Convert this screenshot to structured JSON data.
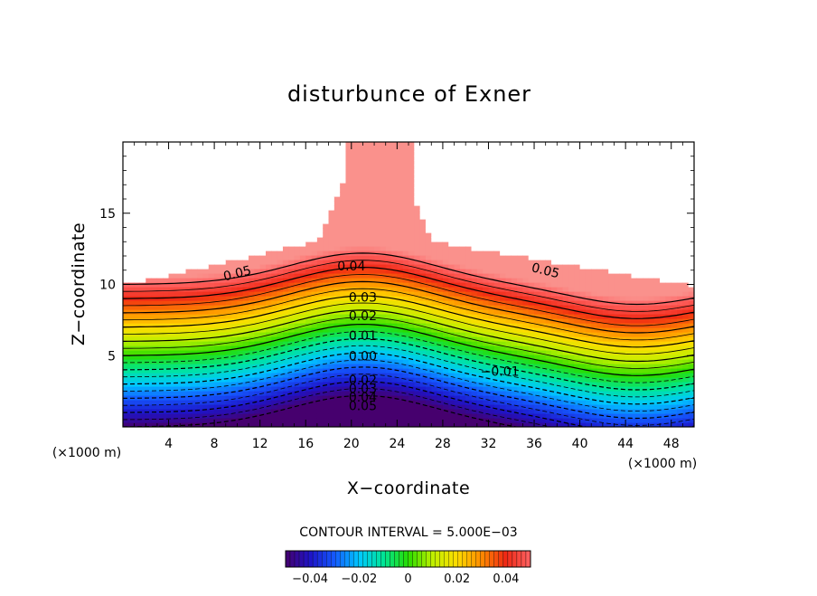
{
  "chart_data": {
    "type": "contour",
    "title": "disturbunce of Exner",
    "xlabel": "X−coordinate",
    "ylabel": "Z−coordinate",
    "x_unit_left": "(×1000 m)",
    "x_unit_right": "(×1000 m)",
    "xlim": [
      0,
      50
    ],
    "ylim": [
      0,
      20
    ],
    "x_ticks": [
      4,
      8,
      12,
      16,
      20,
      24,
      28,
      32,
      36,
      40,
      44,
      48
    ],
    "y_ticks": [
      5,
      10,
      15
    ],
    "contour_interval_text": "CONTOUR INTERVAL = 5.000E−03",
    "contour_interval": 0.005,
    "range": [
      -0.05,
      0.055
    ],
    "contour_labels": [
      "0.05",
      "0.04",
      "0.03",
      "0.02",
      "0.01",
      "0.00",
      "−0.01",
      "0.02",
      "0.03",
      "0.04",
      "0.05",
      "0.05"
    ],
    "colorbar_ticks": [
      "−0.04",
      "−0.02",
      "0",
      "0.02",
      "0.04"
    ],
    "colorbar_values": [
      -0.04,
      -0.02,
      0,
      0.02,
      0.04
    ],
    "colorbar_range": [
      -0.05,
      0.05
    ],
    "missing_region_color": "#ffffff"
  }
}
